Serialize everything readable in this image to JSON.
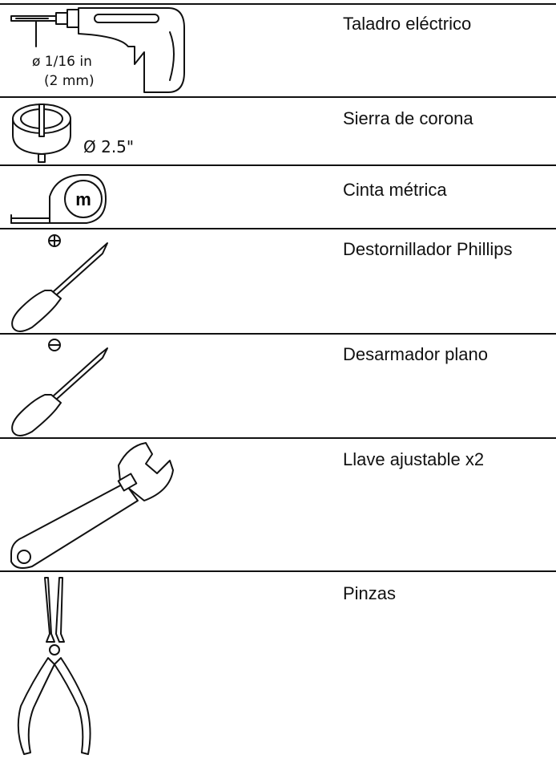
{
  "items": [
    {
      "label": "Taladro eléctrico",
      "notes": [
        "ø 1/16 in",
        "(2 mm)"
      ]
    },
    {
      "label": "Sierra de corona",
      "notes": [
        "Ø 2.5\""
      ]
    },
    {
      "label": "Cinta métrica",
      "notes": [
        "m"
      ]
    },
    {
      "label": "Destornillador Phillips"
    },
    {
      "label": "Desarmador plano"
    },
    {
      "label": "Llave ajustable x2"
    },
    {
      "label": "Pinzas"
    }
  ]
}
